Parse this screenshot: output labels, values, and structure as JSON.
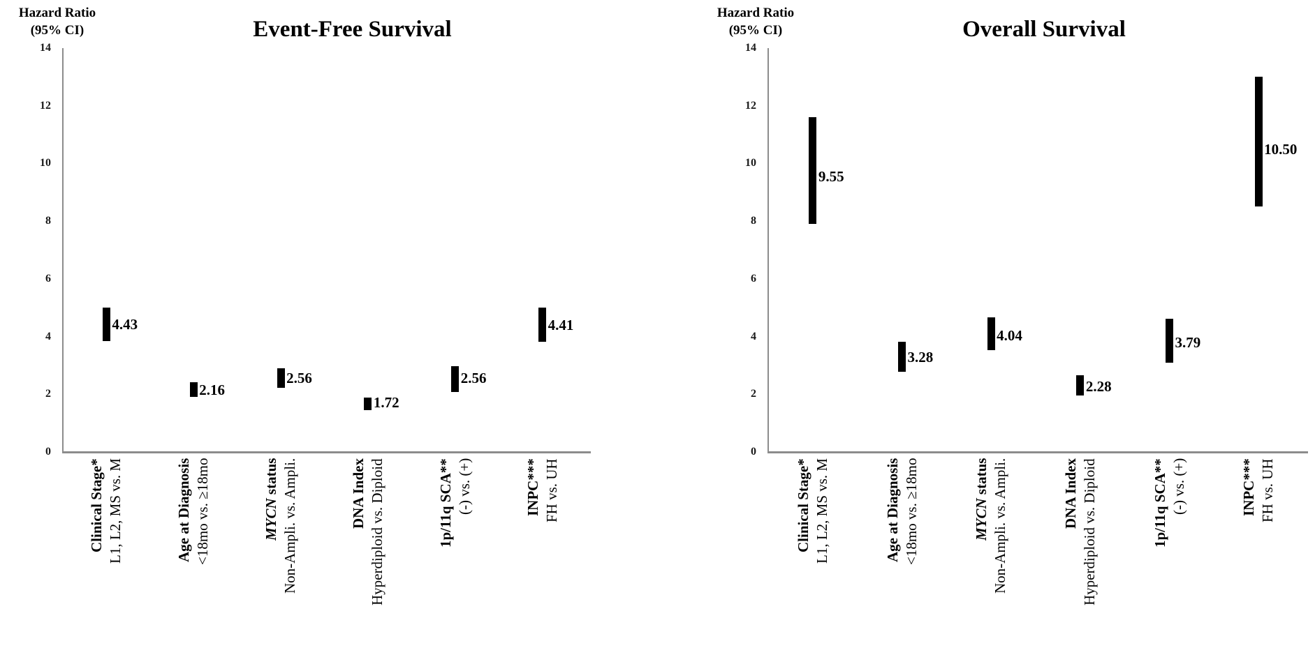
{
  "figure": {
    "background": "#ffffff",
    "text_color": "#000000",
    "axis_color": "#8c8c8c",
    "bar_color": "#000000"
  },
  "chart_data": [
    {
      "type": "bar",
      "subtype": "hazard-ratio-ci-floating-bar",
      "title": "Event-Free Survival",
      "ylabel_line1": "Hazard Ratio",
      "ylabel_line2": "(95% CI)",
      "ylim": [
        0,
        14
      ],
      "yticks": [
        0,
        2,
        4,
        6,
        8,
        10,
        12,
        14
      ],
      "grid": false,
      "legend": "none",
      "categories": [
        {
          "name": "Clinical Stage*",
          "comparison": "L1, L2, MS vs. M"
        },
        {
          "name": "Age at Diagnosis",
          "comparison": "<18mo vs. ≥18mo"
        },
        {
          "name": "MYCN status",
          "name_italic": "MYCN",
          "comparison": "Non-Ampli. vs. Ampli."
        },
        {
          "name": "DNA Index",
          "comparison": "Hyperdiploid vs. Diploid"
        },
        {
          "name": "1p/11q SCA**",
          "comparison": "(-) vs. (+)"
        },
        {
          "name": "INPC***",
          "comparison": "FH vs. UH"
        }
      ],
      "series": [
        {
          "name": "Hazard Ratio (95% CI)",
          "hr": [
            4.43,
            2.16,
            2.56,
            1.72,
            2.56,
            4.41
          ],
          "ci_low": [
            3.85,
            1.9,
            2.22,
            1.45,
            2.08,
            3.82
          ],
          "ci_high": [
            5.0,
            2.42,
            2.9,
            1.89,
            2.97,
            5.0
          ],
          "labels": [
            "4.43",
            "2.16",
            "2.56",
            "1.72",
            "2.56",
            "4.41"
          ]
        }
      ]
    },
    {
      "type": "bar",
      "subtype": "hazard-ratio-ci-floating-bar",
      "title": "Overall Survival",
      "ylabel_line1": "Hazard Ratio",
      "ylabel_line2": "(95% CI)",
      "ylim": [
        0,
        14
      ],
      "yticks": [
        0,
        2,
        4,
        6,
        8,
        10,
        12,
        14
      ],
      "grid": false,
      "legend": "none",
      "categories": [
        {
          "name": "Clinical Stage*",
          "comparison": "L1, L2, MS vs. M"
        },
        {
          "name": "Age at Diagnosis",
          "comparison": "<18mo vs. ≥18mo"
        },
        {
          "name": "MYCN status",
          "name_italic": "MYCN",
          "comparison": "Non-Ampli. vs. Ampli."
        },
        {
          "name": "DNA Index",
          "comparison": "Hyperdiploid vs. Diploid"
        },
        {
          "name": "1p/11q SCA**",
          "comparison": "(-) vs. (+)"
        },
        {
          "name": "INPC***",
          "comparison": "FH vs. UH"
        }
      ],
      "series": [
        {
          "name": "Hazard Ratio (95% CI)",
          "hr": [
            9.55,
            3.28,
            4.04,
            2.28,
            3.79,
            10.5
          ],
          "ci_low": [
            7.9,
            2.78,
            3.53,
            1.96,
            3.1,
            8.5
          ],
          "ci_high": [
            11.6,
            3.82,
            4.67,
            2.66,
            4.62,
            13.0
          ],
          "labels": [
            "9.55",
            "3.28",
            "4.04",
            "2.28",
            "3.79",
            "10.50"
          ]
        }
      ]
    }
  ]
}
